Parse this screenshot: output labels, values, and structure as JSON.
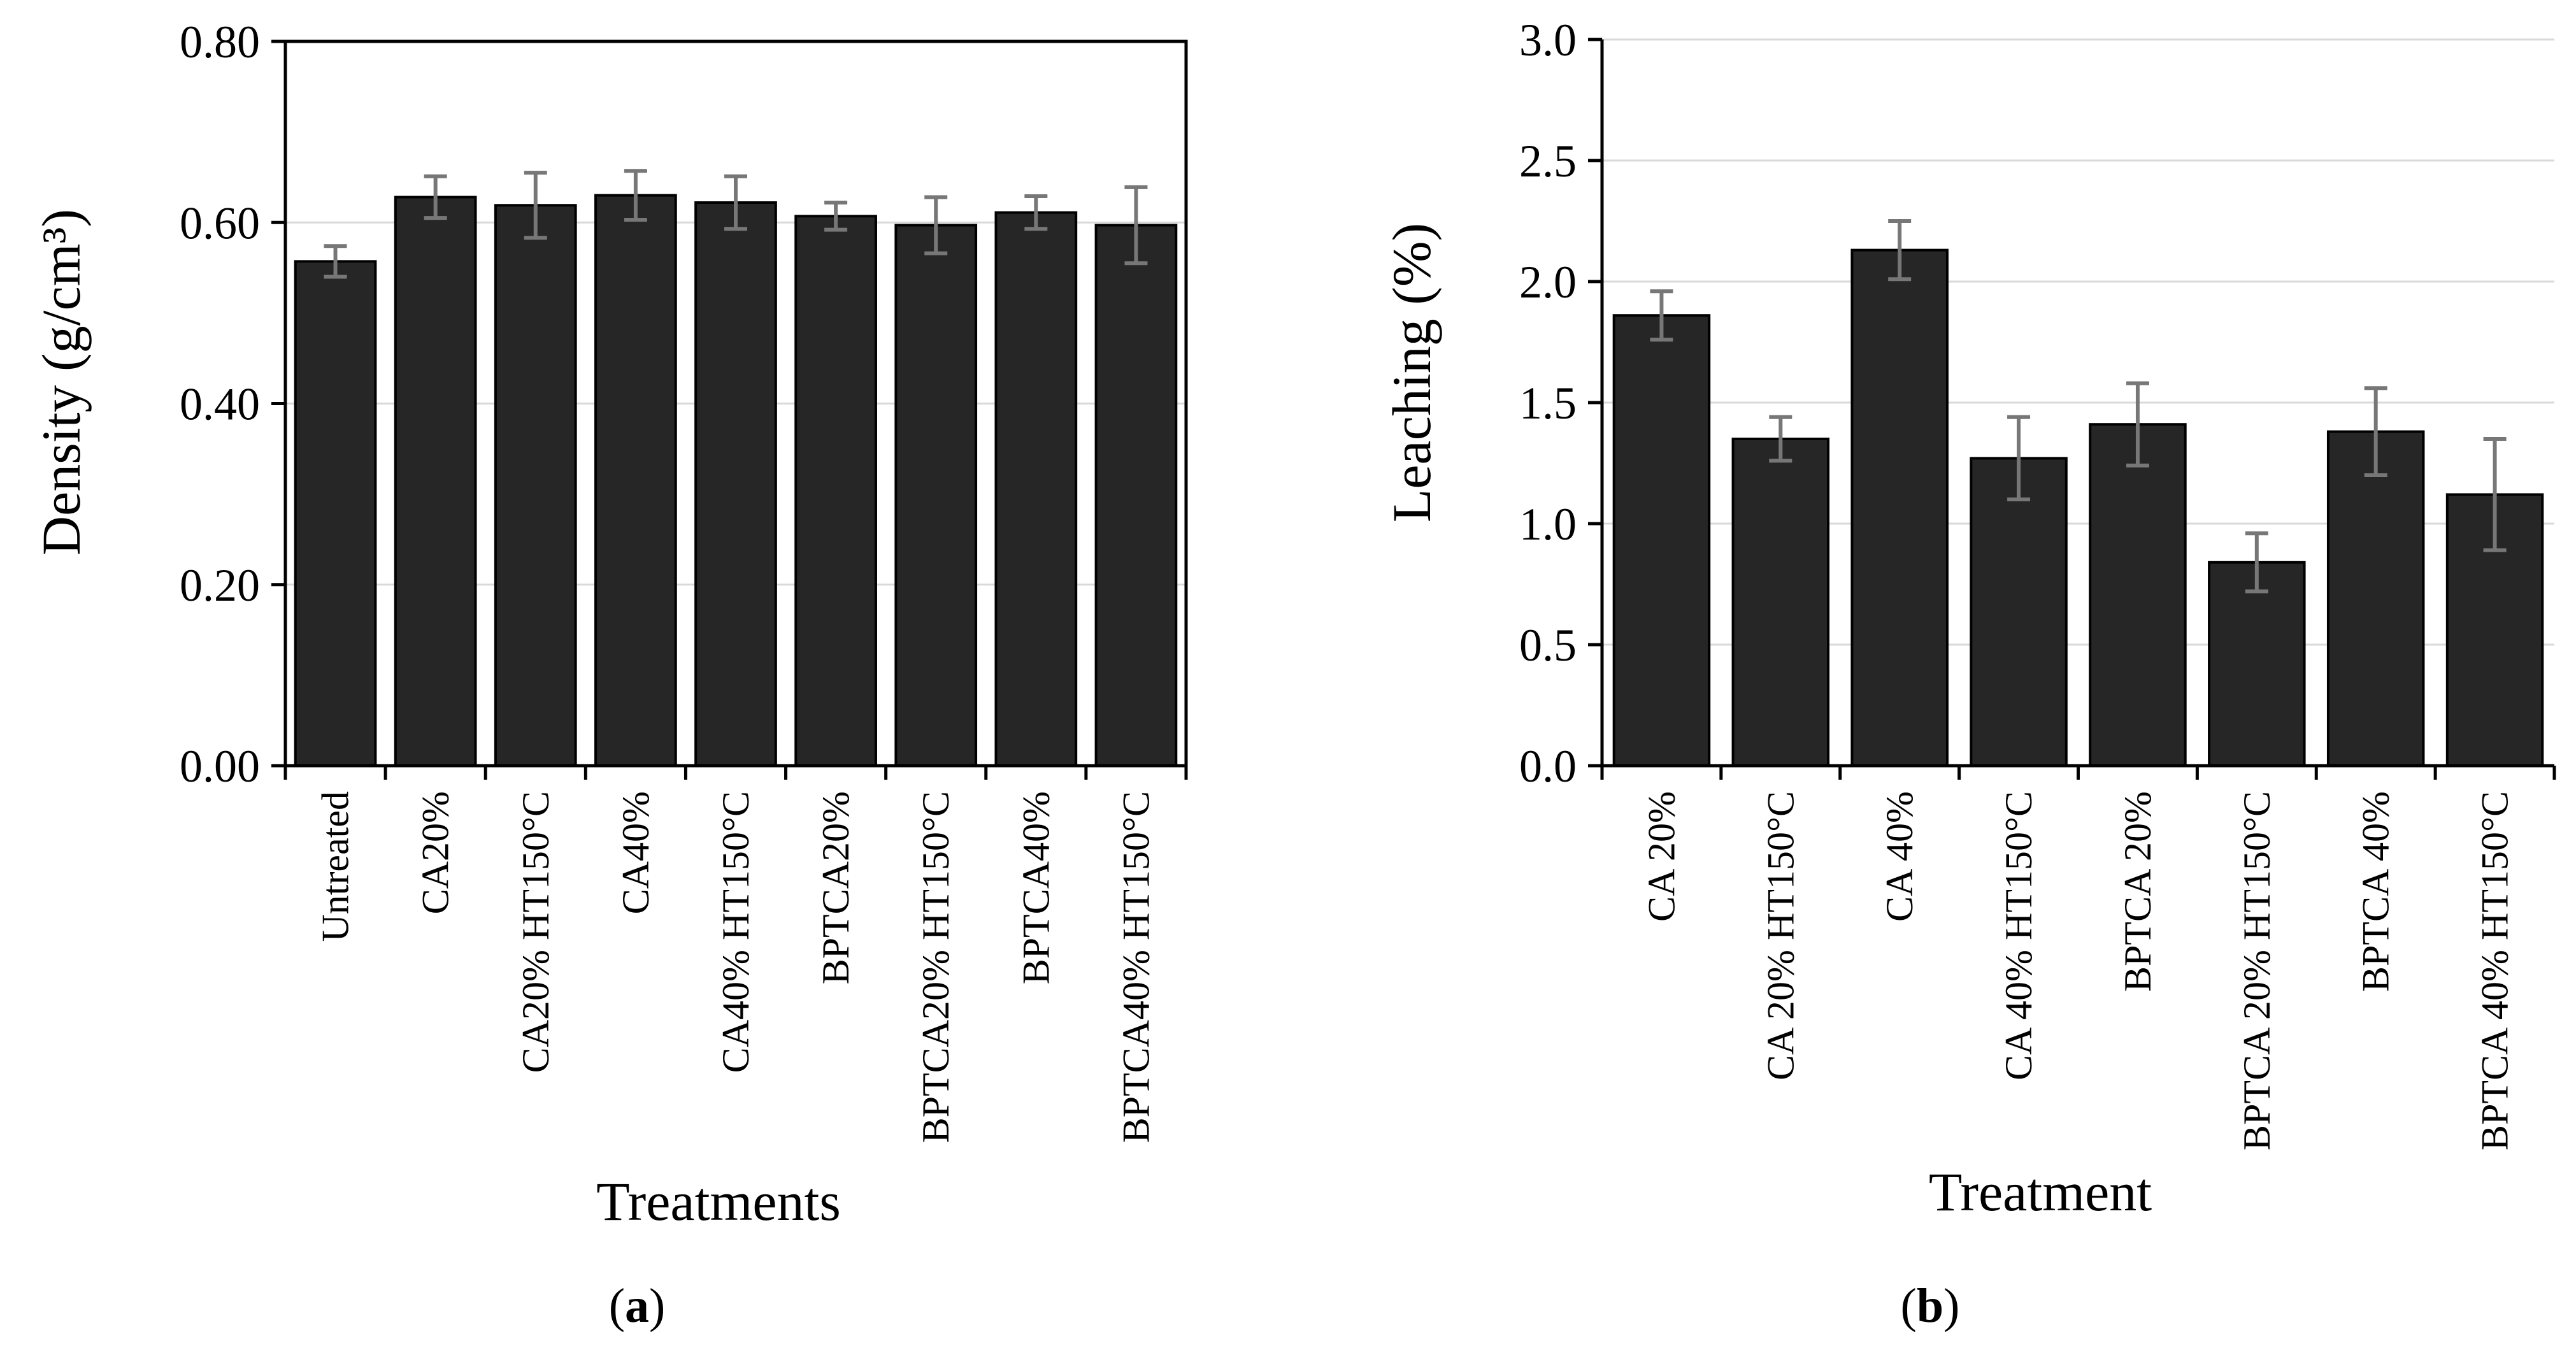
{
  "colors": {
    "bar_fill": "#262626",
    "error_bar": "#777777",
    "gridline": "#d9d9d9"
  },
  "chart_data": [
    {
      "type": "bar",
      "panel_label": "a",
      "title": "",
      "ylabel": "Density (g/cm³)",
      "xlabel": "Treatments",
      "ylim": [
        0,
        0.8
      ],
      "yticks": [
        "0.00",
        "0.20",
        "0.40",
        "0.60",
        "0.80"
      ],
      "grid": true,
      "categories": [
        "Untreated",
        "CA20%",
        "CA20% HT150°C",
        "CA40%",
        "CA40% HT150°C",
        "BPTCA20%",
        "BPTCA20% HT150°C",
        "BPTCA40%",
        "BPTCA40% HT150°C"
      ],
      "values": [
        0.557,
        0.628,
        0.619,
        0.63,
        0.622,
        0.607,
        0.597,
        0.611,
        0.597
      ],
      "errors": [
        0.017,
        0.023,
        0.036,
        0.027,
        0.029,
        0.015,
        0.031,
        0.018,
        0.042
      ]
    },
    {
      "type": "bar",
      "panel_label": "b",
      "title": "",
      "ylabel": "Leaching (%)",
      "xlabel": "Treatment",
      "ylim": [
        0,
        3.0
      ],
      "yticks": [
        "0.0",
        "0.5",
        "1.0",
        "1.5",
        "2.0",
        "2.5",
        "3.0"
      ],
      "grid": true,
      "categories": [
        "CA 20%",
        "CA 20% HT150°C",
        "CA 40%",
        "CA 40% HT150°C",
        "BPTCA 20%",
        "BPTCA 20% HT150°C",
        "BPTCA 40%",
        "BPTCA 40% HT150°C"
      ],
      "values": [
        1.86,
        1.35,
        2.13,
        1.27,
        1.41,
        0.84,
        1.38,
        1.12
      ],
      "errors": [
        0.1,
        0.09,
        0.12,
        0.17,
        0.17,
        0.12,
        0.18,
        0.23
      ]
    }
  ]
}
